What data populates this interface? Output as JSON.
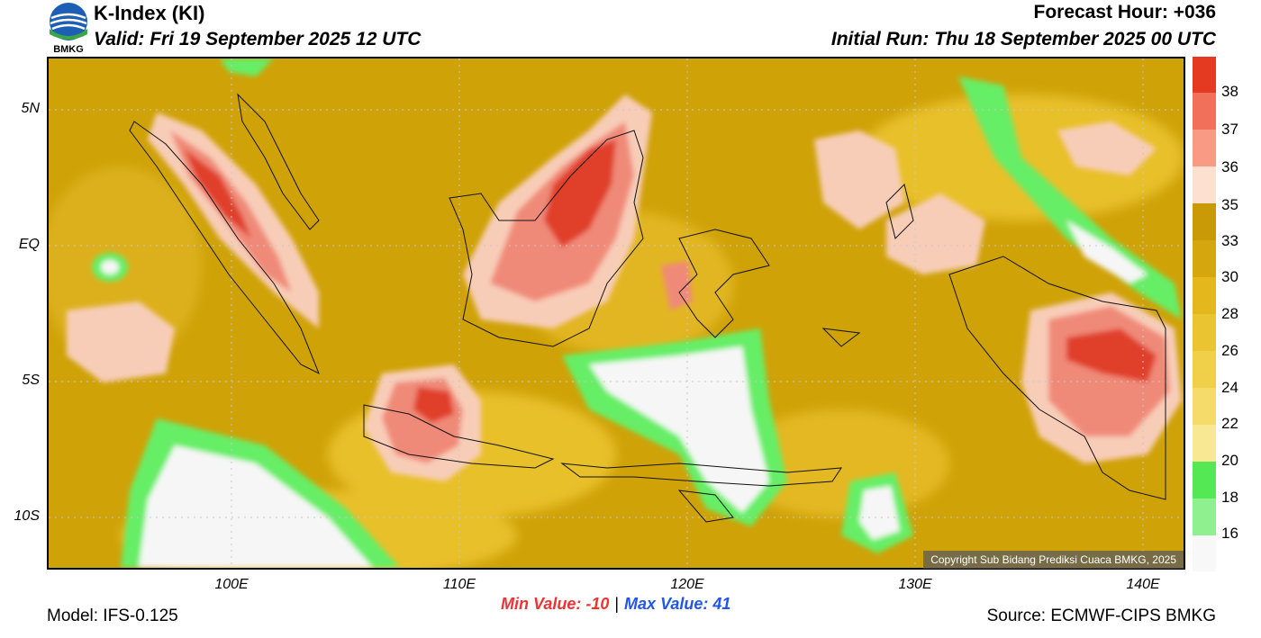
{
  "header": {
    "title": "K-Index (KI)",
    "valid": "Valid: Fri 19 September 2025 12 UTC",
    "forecast_hour": "Forecast Hour: +036",
    "initial_run": "Initial Run: Thu 18 September 2025 00 UTC",
    "logo_text": "BMKG"
  },
  "map": {
    "lat_labels": [
      "5N",
      "EQ",
      "5S",
      "10S"
    ],
    "lon_labels": [
      "100E",
      "110E",
      "120E",
      "130E",
      "140E"
    ],
    "copyright": "Copyright Sub Bidang Prediksi Cuaca BMKG, 2025",
    "colors": {
      "ocean_base": "#cfa208",
      "land_warm": "#e8c02a",
      "high_35": "#f8cdb8",
      "high_37": "#f08a78",
      "high_38": "#e0402a",
      "low_20": "#66ee66",
      "low_18": "#99f299",
      "low_16": "#f6f6f6"
    }
  },
  "colorbar": {
    "labels": [
      "38",
      "37",
      "36",
      "35",
      "33",
      "30",
      "28",
      "26",
      "24",
      "22",
      "20",
      "18",
      "16"
    ],
    "colors": [
      "#e43a22",
      "#f0705a",
      "#f89a84",
      "#fde0d0",
      "#c99a06",
      "#d6a60e",
      "#e4b81c",
      "#ebc432",
      "#f0d048",
      "#f5dc6a",
      "#f8e894",
      "#55e855",
      "#8ef08e",
      "#bff5bf",
      "#f8f8f8"
    ]
  },
  "footer": {
    "min_label": "Min Value: -10",
    "separator": "|",
    "max_label": "Max Value:  41",
    "model": "Model: IFS-0.125",
    "source": "Source: ECMWF-CIPS BMKG"
  }
}
